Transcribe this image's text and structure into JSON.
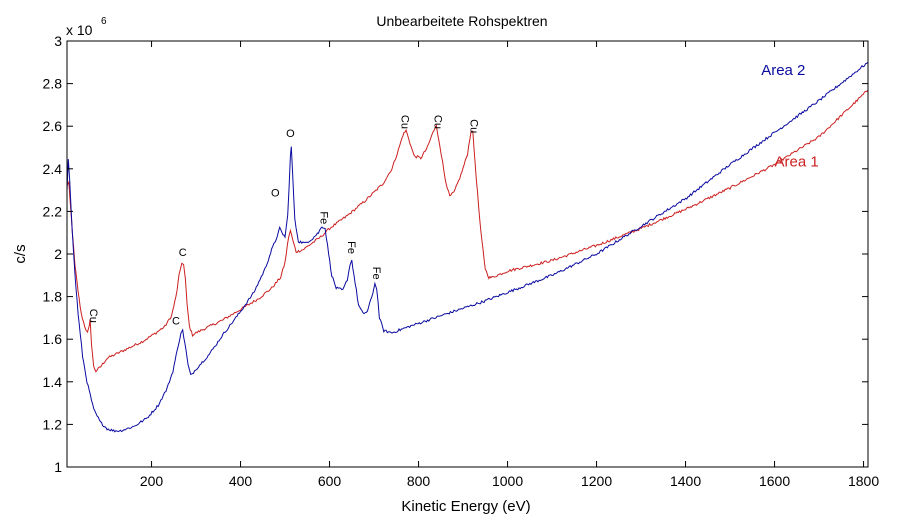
{
  "chart_data": {
    "type": "line",
    "title": "Unbearbeitete Rohspektren",
    "xlabel": "Kinetic Energy (eV)",
    "ylabel": "c/s",
    "xlim": [
      10,
      1810
    ],
    "ylim": [
      1.0,
      3.0
    ],
    "y_exponent_label": "x 10",
    "y_exponent_power": "6",
    "xticks": [
      200,
      400,
      600,
      800,
      1000,
      1200,
      1400,
      1600,
      1800
    ],
    "yticks": [
      1,
      1.2,
      1.4,
      1.6,
      1.8,
      2,
      2.2,
      2.4,
      2.6,
      2.8,
      3
    ],
    "grid": false,
    "colors": {
      "area1": "#cc1f1f",
      "area2": "#0a0aa0"
    },
    "series": [
      {
        "name": "Area 1",
        "label_text": "Area 1",
        "color": "#cc1f1f",
        "points": [
          [
            10,
            2.32
          ],
          [
            14,
            2.34
          ],
          [
            17,
            2.25
          ],
          [
            22,
            2.1
          ],
          [
            28,
            1.95
          ],
          [
            35,
            1.82
          ],
          [
            42,
            1.72
          ],
          [
            50,
            1.66
          ],
          [
            56,
            1.63
          ],
          [
            60,
            1.66
          ],
          [
            62,
            1.69
          ],
          [
            65,
            1.58
          ],
          [
            70,
            1.47
          ],
          [
            75,
            1.45
          ],
          [
            85,
            1.47
          ],
          [
            100,
            1.51
          ],
          [
            120,
            1.53
          ],
          [
            150,
            1.56
          ],
          [
            180,
            1.59
          ],
          [
            210,
            1.63
          ],
          [
            230,
            1.66
          ],
          [
            245,
            1.71
          ],
          [
            255,
            1.8
          ],
          [
            262,
            1.9
          ],
          [
            268,
            1.96
          ],
          [
            272,
            1.95
          ],
          [
            276,
            1.88
          ],
          [
            280,
            1.76
          ],
          [
            285,
            1.66
          ],
          [
            292,
            1.62
          ],
          [
            300,
            1.63
          ],
          [
            330,
            1.66
          ],
          [
            360,
            1.69
          ],
          [
            400,
            1.74
          ],
          [
            440,
            1.79
          ],
          [
            470,
            1.84
          ],
          [
            490,
            1.89
          ],
          [
            500,
            1.96
          ],
          [
            508,
            2.08
          ],
          [
            512,
            2.11
          ],
          [
            518,
            2.06
          ],
          [
            525,
            2.01
          ],
          [
            540,
            2.02
          ],
          [
            560,
            2.05
          ],
          [
            580,
            2.08
          ],
          [
            600,
            2.12
          ],
          [
            640,
            2.18
          ],
          [
            680,
            2.25
          ],
          [
            720,
            2.33
          ],
          [
            740,
            2.4
          ],
          [
            755,
            2.49
          ],
          [
            765,
            2.56
          ],
          [
            772,
            2.58
          ],
          [
            778,
            2.54
          ],
          [
            790,
            2.46
          ],
          [
            805,
            2.45
          ],
          [
            820,
            2.5
          ],
          [
            832,
            2.57
          ],
          [
            840,
            2.6
          ],
          [
            848,
            2.51
          ],
          [
            860,
            2.35
          ],
          [
            870,
            2.27
          ],
          [
            880,
            2.29
          ],
          [
            895,
            2.37
          ],
          [
            910,
            2.47
          ],
          [
            918,
            2.58
          ],
          [
            922,
            2.57
          ],
          [
            930,
            2.35
          ],
          [
            940,
            2.1
          ],
          [
            950,
            1.93
          ],
          [
            958,
            1.89
          ],
          [
            965,
            1.89
          ],
          [
            1000,
            1.92
          ],
          [
            1100,
            1.97
          ],
          [
            1200,
            2.04
          ],
          [
            1300,
            2.12
          ],
          [
            1400,
            2.21
          ],
          [
            1500,
            2.31
          ],
          [
            1600,
            2.42
          ],
          [
            1700,
            2.55
          ],
          [
            1810,
            2.77
          ]
        ]
      },
      {
        "name": "Area 2",
        "label_text": "Area 2",
        "color": "#0a0aa0",
        "points": [
          [
            10,
            2.3
          ],
          [
            13,
            2.45
          ],
          [
            16,
            2.35
          ],
          [
            22,
            2.1
          ],
          [
            28,
            1.9
          ],
          [
            35,
            1.72
          ],
          [
            45,
            1.52
          ],
          [
            55,
            1.4
          ],
          [
            70,
            1.27
          ],
          [
            85,
            1.21
          ],
          [
            100,
            1.18
          ],
          [
            115,
            1.17
          ],
          [
            130,
            1.17
          ],
          [
            160,
            1.19
          ],
          [
            190,
            1.23
          ],
          [
            215,
            1.29
          ],
          [
            235,
            1.37
          ],
          [
            248,
            1.45
          ],
          [
            258,
            1.55
          ],
          [
            266,
            1.63
          ],
          [
            270,
            1.64
          ],
          [
            275,
            1.58
          ],
          [
            282,
            1.48
          ],
          [
            288,
            1.43
          ],
          [
            300,
            1.46
          ],
          [
            330,
            1.53
          ],
          [
            360,
            1.62
          ],
          [
            400,
            1.73
          ],
          [
            430,
            1.82
          ],
          [
            455,
            1.93
          ],
          [
            470,
            2.02
          ],
          [
            480,
            2.07
          ],
          [
            488,
            2.12
          ],
          [
            493,
            2.1
          ],
          [
            500,
            2.08
          ],
          [
            506,
            2.18
          ],
          [
            512,
            2.46
          ],
          [
            514,
            2.5
          ],
          [
            517,
            2.38
          ],
          [
            522,
            2.16
          ],
          [
            530,
            2.06
          ],
          [
            545,
            2.05
          ],
          [
            560,
            2.07
          ],
          [
            575,
            2.1
          ],
          [
            583,
            2.13
          ],
          [
            590,
            2.12
          ],
          [
            598,
            2.0
          ],
          [
            605,
            1.9
          ],
          [
            615,
            1.84
          ],
          [
            630,
            1.83
          ],
          [
            640,
            1.88
          ],
          [
            646,
            1.95
          ],
          [
            650,
            1.97
          ],
          [
            655,
            1.9
          ],
          [
            665,
            1.76
          ],
          [
            675,
            1.72
          ],
          [
            685,
            1.73
          ],
          [
            695,
            1.8
          ],
          [
            702,
            1.86
          ],
          [
            706,
            1.84
          ],
          [
            712,
            1.7
          ],
          [
            722,
            1.64
          ],
          [
            740,
            1.63
          ],
          [
            780,
            1.66
          ],
          [
            850,
            1.71
          ],
          [
            950,
            1.78
          ],
          [
            1050,
            1.86
          ],
          [
            1100,
            1.9
          ],
          [
            1200,
            2.0
          ],
          [
            1300,
            2.13
          ],
          [
            1400,
            2.26
          ],
          [
            1500,
            2.42
          ],
          [
            1600,
            2.57
          ],
          [
            1700,
            2.72
          ],
          [
            1810,
            2.9
          ]
        ]
      }
    ],
    "annotations": [
      {
        "text": "Cu",
        "x": 62,
        "y": 1.71,
        "rotate": true
      },
      {
        "text": "C",
        "x": 270,
        "y": 1.99,
        "rotate": false
      },
      {
        "text": "C",
        "x": 255,
        "y": 1.67,
        "rotate": false
      },
      {
        "text": "O",
        "x": 478,
        "y": 2.27,
        "rotate": false
      },
      {
        "text": "O",
        "x": 512,
        "y": 2.55,
        "rotate": false
      },
      {
        "text": "Fe",
        "x": 580,
        "y": 2.17,
        "rotate": true
      },
      {
        "text": "Fe",
        "x": 642,
        "y": 2.03,
        "rotate": true
      },
      {
        "text": "Fe",
        "x": 698,
        "y": 1.91,
        "rotate": true
      },
      {
        "text": "Cu",
        "x": 762,
        "y": 2.62,
        "rotate": true
      },
      {
        "text": "Cu",
        "x": 836,
        "y": 2.62,
        "rotate": true
      },
      {
        "text": "Cu",
        "x": 917,
        "y": 2.6,
        "rotate": true
      }
    ],
    "legend_labels": [
      {
        "series": "Area 2",
        "x": 1570,
        "y": 2.84
      },
      {
        "series": "Area 1",
        "x": 1600,
        "y": 2.41
      }
    ]
  }
}
